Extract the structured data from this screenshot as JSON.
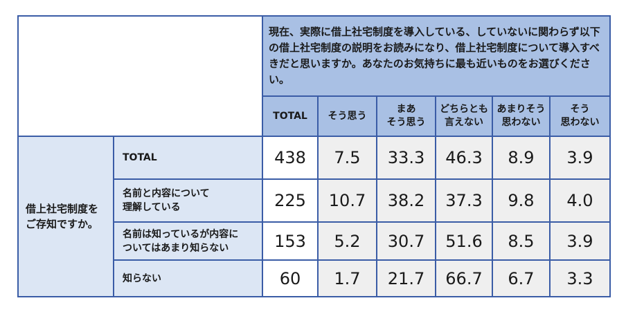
{
  "table": {
    "question": "現在、実際に借上社宅制度を導入している、していないに関わらず以下の借上社宅制度の説明をお読みになり、借上社宅制度について導入すべきだと思いますか。あなたのお気持ちに最も近いものをお選びください。",
    "columns": [
      "TOTAL",
      "そう思う",
      "まあ\nそう思う",
      "どちらとも\n言えない",
      "あまりそう\n思わない",
      "そう\n思わない"
    ],
    "row_group": "借上社宅制度を\nご存知ですか。",
    "rows": [
      {
        "label": "TOTAL",
        "values": [
          "438",
          "7.5",
          "33.3",
          "46.3",
          "8.9",
          "3.9"
        ]
      },
      {
        "label": "名前と内容について\n理解している",
        "values": [
          "225",
          "10.7",
          "38.2",
          "37.3",
          "9.8",
          "4.0"
        ]
      },
      {
        "label": "名前は知っているが内容に\nついてはあまり知らない",
        "values": [
          "153",
          "5.2",
          "30.7",
          "51.6",
          "8.5",
          "3.9"
        ]
      },
      {
        "label": "知らない",
        "values": [
          "60",
          "1.7",
          "21.7",
          "66.7",
          "6.7",
          "3.3"
        ]
      }
    ]
  }
}
